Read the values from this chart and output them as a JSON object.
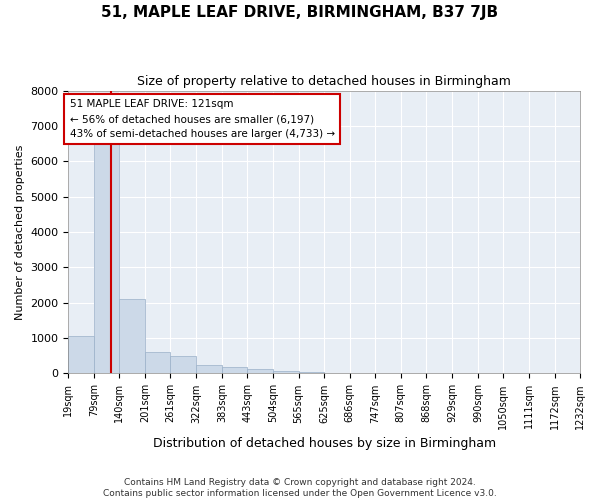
{
  "title": "51, MAPLE LEAF DRIVE, BIRMINGHAM, B37 7JB",
  "subtitle": "Size of property relative to detached houses in Birmingham",
  "xlabel": "Distribution of detached houses by size in Birmingham",
  "ylabel": "Number of detached properties",
  "footer_line1": "Contains HM Land Registry data © Crown copyright and database right 2024.",
  "footer_line2": "Contains public sector information licensed under the Open Government Licence v3.0.",
  "annotation_title": "51 MAPLE LEAF DRIVE: 121sqm",
  "annotation_line1": "← 56% of detached houses are smaller (6,197)",
  "annotation_line2": "43% of semi-detached houses are larger (4,733) →",
  "property_size": 121,
  "bar_color": "#ccd9e8",
  "bar_edge_color": "#9ab0c8",
  "line_color": "#cc0000",
  "annotation_box_color": "#ffffff",
  "annotation_box_edge": "#cc0000",
  "background_color": "#e8eef5",
  "bins": [
    19,
    79,
    140,
    201,
    261,
    322,
    383,
    443,
    504,
    565,
    625,
    686,
    747,
    807,
    868,
    929,
    990,
    1050,
    1111,
    1172,
    1232
  ],
  "counts": [
    1050,
    6500,
    2100,
    600,
    500,
    250,
    170,
    120,
    80,
    50,
    10,
    5,
    3,
    2,
    1,
    1,
    0,
    0,
    0,
    0
  ],
  "ylim": [
    0,
    8000
  ],
  "yticks": [
    0,
    1000,
    2000,
    3000,
    4000,
    5000,
    6000,
    7000,
    8000
  ]
}
